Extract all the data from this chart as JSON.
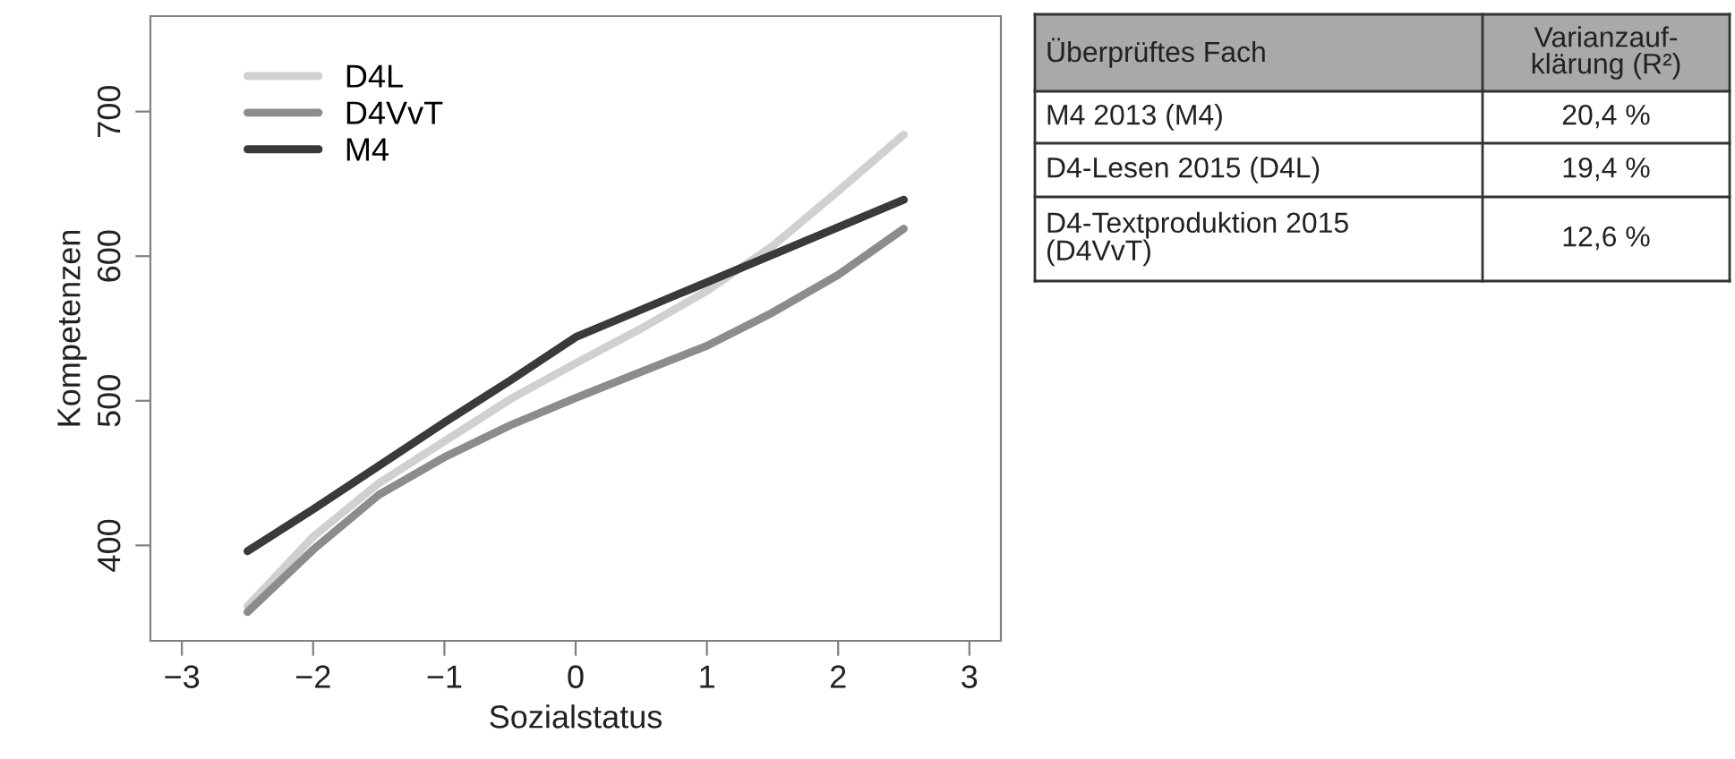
{
  "chart_data": [
    {
      "type": "line",
      "xlabel": "Sozialstatus",
      "ylabel": "Kompetenzen",
      "x": [
        -2.5,
        -2,
        -1.5,
        -1,
        -0.5,
        0,
        0.5,
        1,
        1.5,
        2,
        2.5
      ],
      "series": [
        {
          "name": "D4L",
          "color": "#d0d0d0",
          "values": [
            358,
            406,
            443,
            472,
            501,
            526,
            550,
            576,
            607,
            645,
            684
          ]
        },
        {
          "name": "D4VvT",
          "color": "#8c8c8c",
          "values": [
            354,
            397,
            435,
            461,
            483,
            502,
            520,
            538,
            561,
            587,
            619
          ]
        },
        {
          "name": "M4",
          "color": "#3a3a3a",
          "values": [
            396,
            425,
            455,
            485,
            514,
            544,
            563,
            582,
            601,
            620,
            639
          ]
        }
      ],
      "xlim": [
        -3.24,
        3.24
      ],
      "xticks": [
        -3,
        -2,
        -1,
        0,
        1,
        2,
        3
      ],
      "ylim": [
        334,
        766
      ],
      "yticks": [
        400,
        500,
        600,
        700
      ],
      "legend": "top left",
      "grid": false,
      "marker": "none",
      "line_style": "solid"
    },
    {
      "type": "other",
      "xlabel": "Überprüftes Fach",
      "ylabel": "Varianzauf-\nklärung (R²)",
      "categories": [
        "M4 2013 (M4)",
        "D4-Lesen 2015 (D4L)",
        "D4-Textproduktion 2015\n(D4VvT)"
      ],
      "value_labels": [
        "20,4 %",
        "19,4 %",
        "12,6 %"
      ]
    }
  ]
}
